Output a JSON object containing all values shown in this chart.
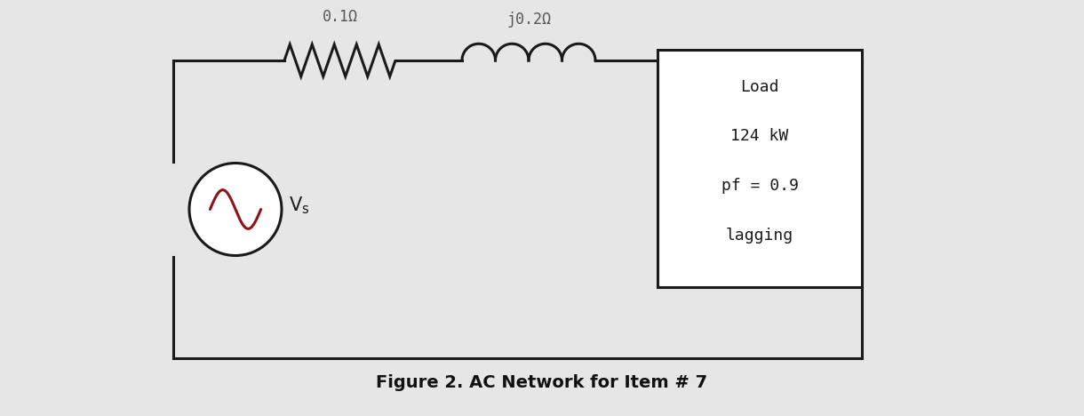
{
  "bg_color": "#e6e6e6",
  "line_color": "#1a1a1a",
  "line_width": 2.2,
  "resistor_label": "0.1Ω",
  "inductor_label": "j0.2Ω",
  "load_lines": [
    "Load",
    "124 kW",
    "pf = 0.9",
    "lagging"
  ],
  "figure_caption": "Figure 2. AC Network for Item # 7",
  "sine_color": "#8b1515",
  "caption_fontsize": 14,
  "label_fontsize": 12,
  "load_fontsize": 13
}
